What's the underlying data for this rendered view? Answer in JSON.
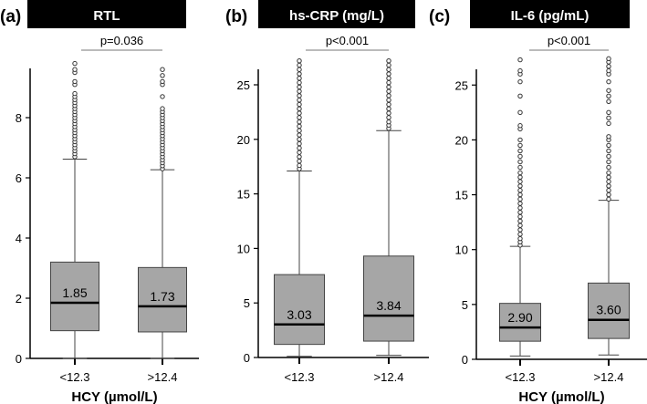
{
  "chart_data": [
    {
      "type": "box",
      "panel_label": "(a)",
      "title": "RTL",
      "xlabel": "HCY (µmol/L)",
      "ylabel": "",
      "ylim": [
        0,
        9.6
      ],
      "yticks": [
        0,
        2,
        4,
        6,
        8
      ],
      "ytick_labels": [
        "0",
        "2",
        "4",
        "6",
        "8"
      ],
      "categories": [
        "<12.3",
        ">12.4"
      ],
      "p_value": "p=0.036",
      "boxes": [
        {
          "whisker_low": 0,
          "q1": 0.92,
          "median": 1.85,
          "q3": 3.2,
          "whisker_high": 6.62,
          "median_label": "1.85",
          "outliers": [
            6.7,
            6.8,
            6.9,
            7.0,
            7.1,
            7.2,
            7.3,
            7.4,
            7.5,
            7.6,
            7.7,
            7.8,
            7.9,
            8.0,
            8.1,
            8.2,
            8.3,
            8.4,
            8.5,
            8.6,
            8.7,
            8.8,
            9.1,
            9.2,
            9.5,
            9.6,
            9.8
          ]
        },
        {
          "whisker_low": 0,
          "q1": 0.88,
          "median": 1.73,
          "q3": 3.02,
          "whisker_high": 6.27,
          "median_label": "1.73",
          "outliers": [
            6.3,
            6.4,
            6.5,
            6.6,
            6.7,
            6.8,
            6.9,
            7.0,
            7.1,
            7.2,
            7.3,
            7.4,
            7.5,
            7.6,
            7.7,
            7.8,
            7.9,
            8.0,
            8.1,
            8.2,
            8.3,
            8.7,
            9.1,
            9.2,
            9.4,
            9.6
          ]
        }
      ]
    },
    {
      "type": "box",
      "panel_label": "(b)",
      "title": "hs-CRP (mg/L)",
      "xlabel": "",
      "ylabel": "",
      "ylim": [
        0,
        26.5
      ],
      "yticks": [
        0,
        5,
        10,
        15,
        20,
        25
      ],
      "ytick_labels": [
        "0",
        "5",
        "10",
        "15",
        "20",
        "25"
      ],
      "categories": [
        "<12.3",
        ">12.4"
      ],
      "p_value": "p<0.001",
      "boxes": [
        {
          "whisker_low": 0.1,
          "q1": 1.2,
          "median": 3.03,
          "q3": 7.6,
          "whisker_high": 17.1,
          "median_label": "3.03",
          "outliers": [
            17.3,
            17.6,
            18,
            18.4,
            18.8,
            19.2,
            19.6,
            20,
            20.4,
            20.8,
            21.2,
            21.6,
            22,
            22.4,
            22.8,
            23.2,
            23.6,
            24,
            24.4,
            24.8,
            25.2,
            25.6,
            26,
            26.4,
            26.8,
            27.2
          ]
        },
        {
          "whisker_low": 0.2,
          "q1": 1.5,
          "median": 3.84,
          "q3": 9.3,
          "whisker_high": 20.8,
          "median_label": "3.84",
          "outliers": [
            21,
            21.3,
            21.6,
            22,
            22.4,
            22.8,
            23.2,
            23.6,
            24,
            24.4,
            24.8,
            25.2,
            25.6,
            26,
            26.4,
            26.8,
            27.2
          ]
        }
      ]
    },
    {
      "type": "box",
      "panel_label": "(c)",
      "title": "IL-6 (pg/mL)",
      "xlabel": "HCY (µmol/L)",
      "ylabel": "",
      "ylim": [
        0,
        26.5
      ],
      "yticks": [
        0,
        5,
        10,
        15,
        20,
        25
      ],
      "ytick_labels": [
        "0",
        "5",
        "10",
        "15",
        "20",
        "25"
      ],
      "categories": [
        "<12.3",
        ">12.4"
      ],
      "p_value": "p<0.001",
      "boxes": [
        {
          "whisker_low": 0.3,
          "q1": 1.65,
          "median": 2.9,
          "q3": 5.1,
          "whisker_high": 10.3,
          "median_label": "2.90",
          "outliers": [
            10.4,
            10.7,
            11,
            11.4,
            11.8,
            12.2,
            12.6,
            13,
            13.4,
            13.8,
            14.2,
            14.6,
            15,
            15.4,
            15.8,
            16.2,
            16.6,
            17,
            17.5,
            18,
            18.5,
            19,
            19.5,
            20,
            21,
            21.3,
            22.5,
            24,
            25.3,
            26,
            26.3,
            27.3
          ]
        },
        {
          "whisker_low": 0.4,
          "q1": 1.9,
          "median": 3.6,
          "q3": 6.95,
          "whisker_high": 14.5,
          "median_label": "3.60",
          "outliers": [
            14.6,
            15,
            15.4,
            15.8,
            16.2,
            16.6,
            17,
            17.5,
            18,
            18.5,
            19,
            19.5,
            20,
            20.3,
            21.5,
            22,
            22.5,
            23.5,
            24,
            24.5,
            25.3,
            26,
            26.3,
            26.7,
            27.1,
            27.4
          ]
        }
      ]
    }
  ]
}
